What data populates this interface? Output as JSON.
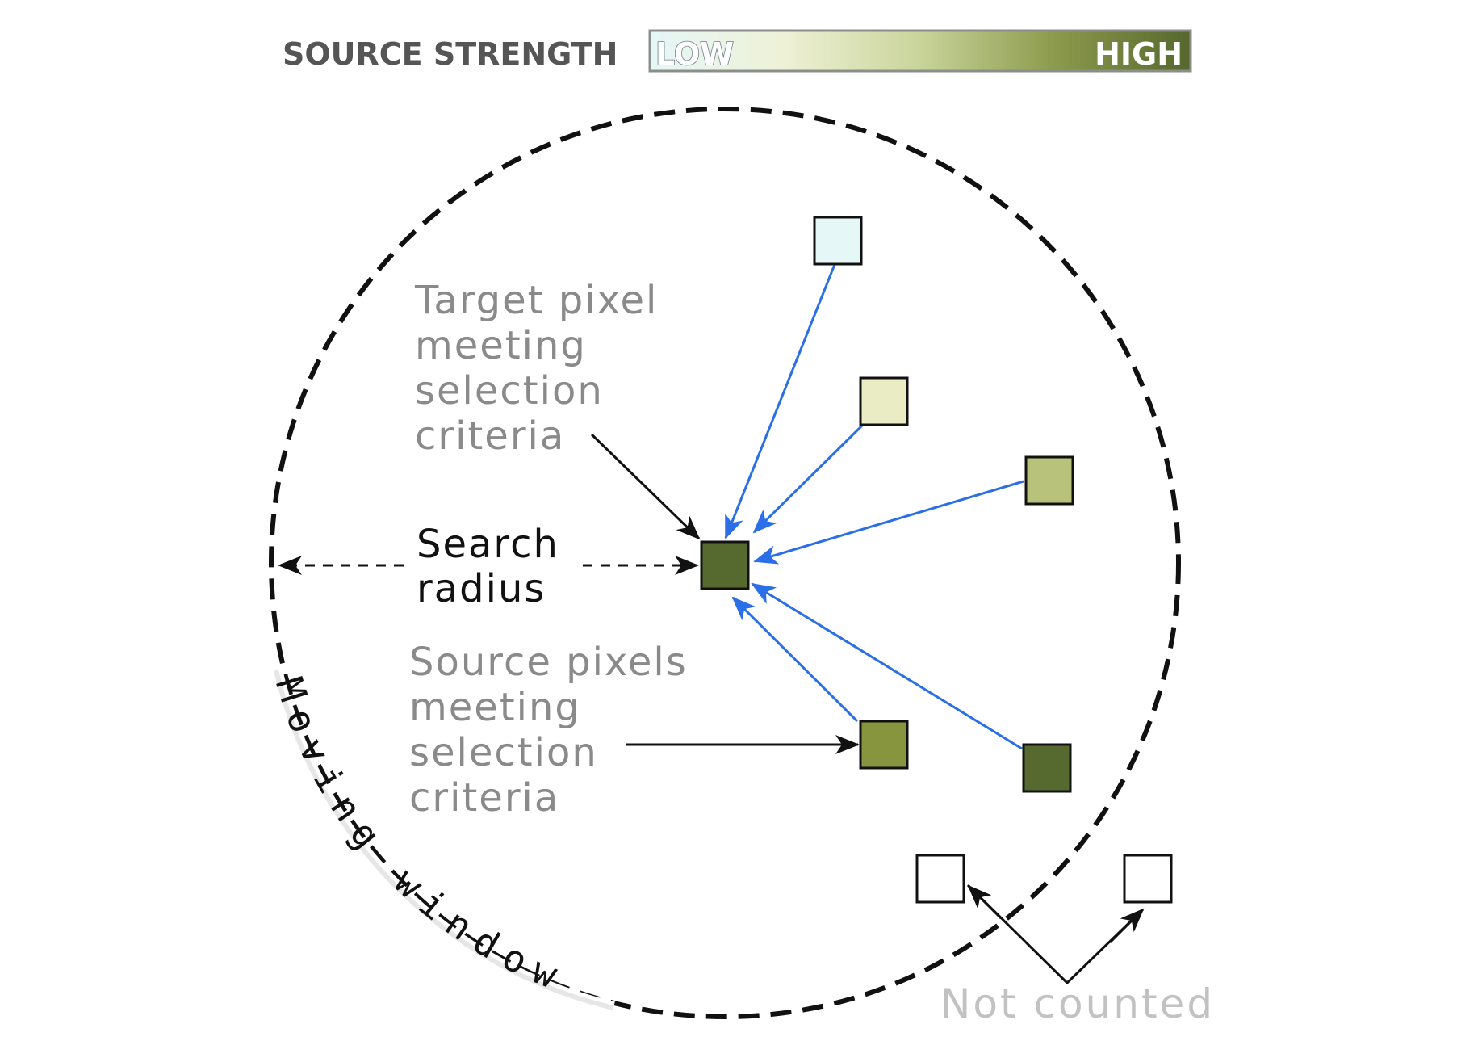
{
  "legend": {
    "title": "SOURCE STRENGTH",
    "low_label": "LOW",
    "high_label": "HIGH",
    "gradient_colors": [
      "#e6f7f8",
      "#eef1d6",
      "#c9d49a",
      "#8c9a4c",
      "#56682e"
    ]
  },
  "labels": {
    "target_pixel": [
      "Target pixel",
      "meeting",
      "selection",
      "criteria"
    ],
    "search_radius": [
      "Search",
      "radius"
    ],
    "source_pixels": [
      "Source pixels",
      "meeting",
      "selection",
      "criteria"
    ],
    "not_counted": "Not counted",
    "moving_window": "Moving window"
  },
  "colors": {
    "target_pixel": "#566a30",
    "connector_arrow": "#2a6fe8",
    "annotation_text": "#8a8a8a",
    "not_counted_text": "#c2c2c2",
    "window_outline": "#111111",
    "source_pixels": [
      "#e6f7f8",
      "#eaedc4",
      "#b8c27a",
      "#87963e",
      "#566a30"
    ]
  },
  "source_strength": [
    0.05,
    0.25,
    0.5,
    0.75,
    1.0
  ],
  "not_counted_pixels": 2
}
